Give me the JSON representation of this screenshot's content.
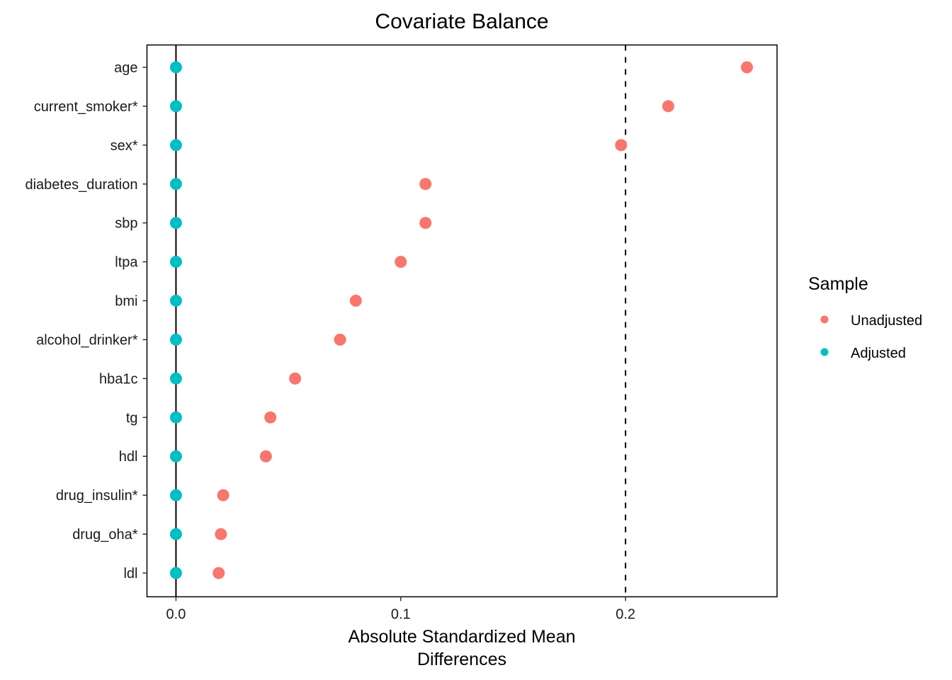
{
  "chart_data": {
    "type": "scatter",
    "title": "Covariate Balance",
    "xlabel": [
      "Absolute Standardized Mean",
      "Differences"
    ],
    "ylabel": "",
    "xlim": [
      -0.0129,
      0.2674
    ],
    "xticks": [
      0.0,
      0.1,
      0.2
    ],
    "xtick_labels": [
      "0.0",
      "0.1",
      "0.2"
    ],
    "threshold": 0.2,
    "zero_line": 0.0,
    "grid": false,
    "categories": [
      "age",
      "current_smoker*",
      "sex*",
      "diabetes_duration",
      "sbp",
      "ltpa",
      "bmi",
      "alcohol_drinker*",
      "hba1c",
      "tg",
      "hdl",
      "drug_insulin*",
      "drug_oha*",
      "ldl"
    ],
    "series": [
      {
        "name": "Unadjusted",
        "color": "#F8766D",
        "values": [
          0.254,
          0.219,
          0.198,
          0.111,
          0.111,
          0.1,
          0.08,
          0.073,
          0.053,
          0.042,
          0.04,
          0.021,
          0.02,
          0.019
        ]
      },
      {
        "name": "Adjusted",
        "color": "#00BFC4",
        "values": [
          0,
          0,
          0,
          0,
          0,
          0,
          0,
          0,
          0,
          0,
          0,
          0,
          0,
          0
        ]
      }
    ],
    "legend": {
      "title": "Sample",
      "position": "right",
      "entries": [
        "Unadjusted",
        "Adjusted"
      ]
    }
  }
}
